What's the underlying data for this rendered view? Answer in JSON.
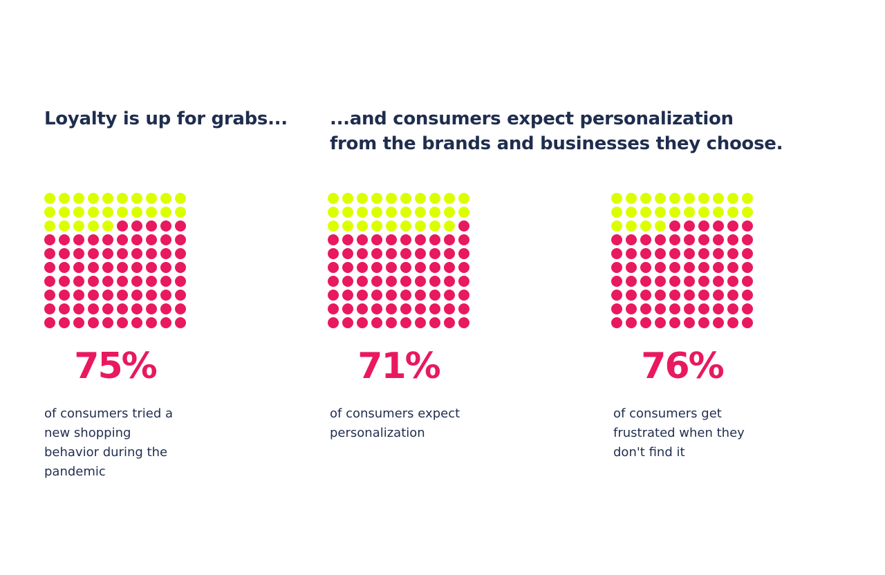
{
  "headings": [
    "Loyalty is up for grabs...",
    "...and consumers expect personalization from the brands and businesses they choose."
  ],
  "chart_data": [
    {
      "type": "waffle",
      "values": [
        75
      ],
      "value_labels": [
        "75%"
      ],
      "caption": "of consumers tried a new shopping behavior during the pandemic",
      "color": "#e8195f",
      "rest_color": "#dcff00"
    },
    {
      "type": "waffle",
      "values": [
        71
      ],
      "value_labels": [
        "71%"
      ],
      "caption": "of consumers expect personalization",
      "color": "#e8195f",
      "rest_color": "#dcff00"
    },
    {
      "type": "waffle",
      "values": [
        76
      ],
      "value_labels": [
        "76%"
      ],
      "caption": "of consumers get frustrated when they don't find it",
      "color": "#e8195f",
      "rest_color": "#dcff00"
    }
  ]
}
